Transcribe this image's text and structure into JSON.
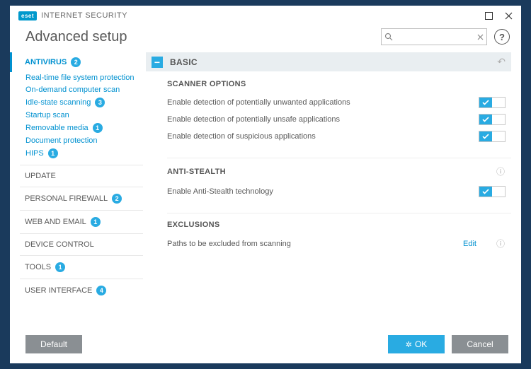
{
  "colors": {
    "accent": "#29abe2",
    "link": "#0091d0",
    "text_muted": "#595959",
    "panel_bg": "#e9eef1",
    "btn_gray": "#8a8f93",
    "border": "#bfbfbf"
  },
  "titlebar": {
    "logo_text": "eset",
    "product_name": "INTERNET SECURITY"
  },
  "header": {
    "title": "Advanced setup",
    "search_placeholder": ""
  },
  "sidebar": {
    "active": {
      "label": "ANTIVIRUS",
      "badge": "2",
      "children": [
        {
          "label": "Real-time file system protection",
          "badge": null
        },
        {
          "label": "On-demand computer scan",
          "badge": null
        },
        {
          "label": "Idle-state scanning",
          "badge": "3"
        },
        {
          "label": "Startup scan",
          "badge": null
        },
        {
          "label": "Removable media",
          "badge": "1"
        },
        {
          "label": "Document protection",
          "badge": null
        },
        {
          "label": "HIPS",
          "badge": "1"
        }
      ]
    },
    "items": [
      {
        "label": "UPDATE",
        "badge": null
      },
      {
        "label": "PERSONAL FIREWALL",
        "badge": "2"
      },
      {
        "label": "WEB AND EMAIL",
        "badge": "1"
      },
      {
        "label": "DEVICE CONTROL",
        "badge": null
      },
      {
        "label": "TOOLS",
        "badge": "1"
      },
      {
        "label": "USER INTERFACE",
        "badge": "4"
      }
    ]
  },
  "panel": {
    "title": "BASIC",
    "sections": {
      "scanner": {
        "title": "SCANNER OPTIONS",
        "settings": [
          {
            "label": "Enable detection of potentially unwanted applications",
            "on": true,
            "info": false
          },
          {
            "label": "Enable detection of potentially unsafe applications",
            "on": true,
            "info": false
          },
          {
            "label": "Enable detection of suspicious applications",
            "on": true,
            "info": false
          }
        ]
      },
      "antistealth": {
        "title": "ANTI-STEALTH",
        "info": true,
        "settings": [
          {
            "label": "Enable Anti-Stealth technology",
            "on": true,
            "info": false
          }
        ]
      },
      "exclusions": {
        "title": "EXCLUSIONS",
        "row": {
          "label": "Paths to be excluded from scanning",
          "action": "Edit",
          "info": true
        }
      }
    }
  },
  "footer": {
    "default": "Default",
    "ok": "OK",
    "cancel": "Cancel"
  }
}
